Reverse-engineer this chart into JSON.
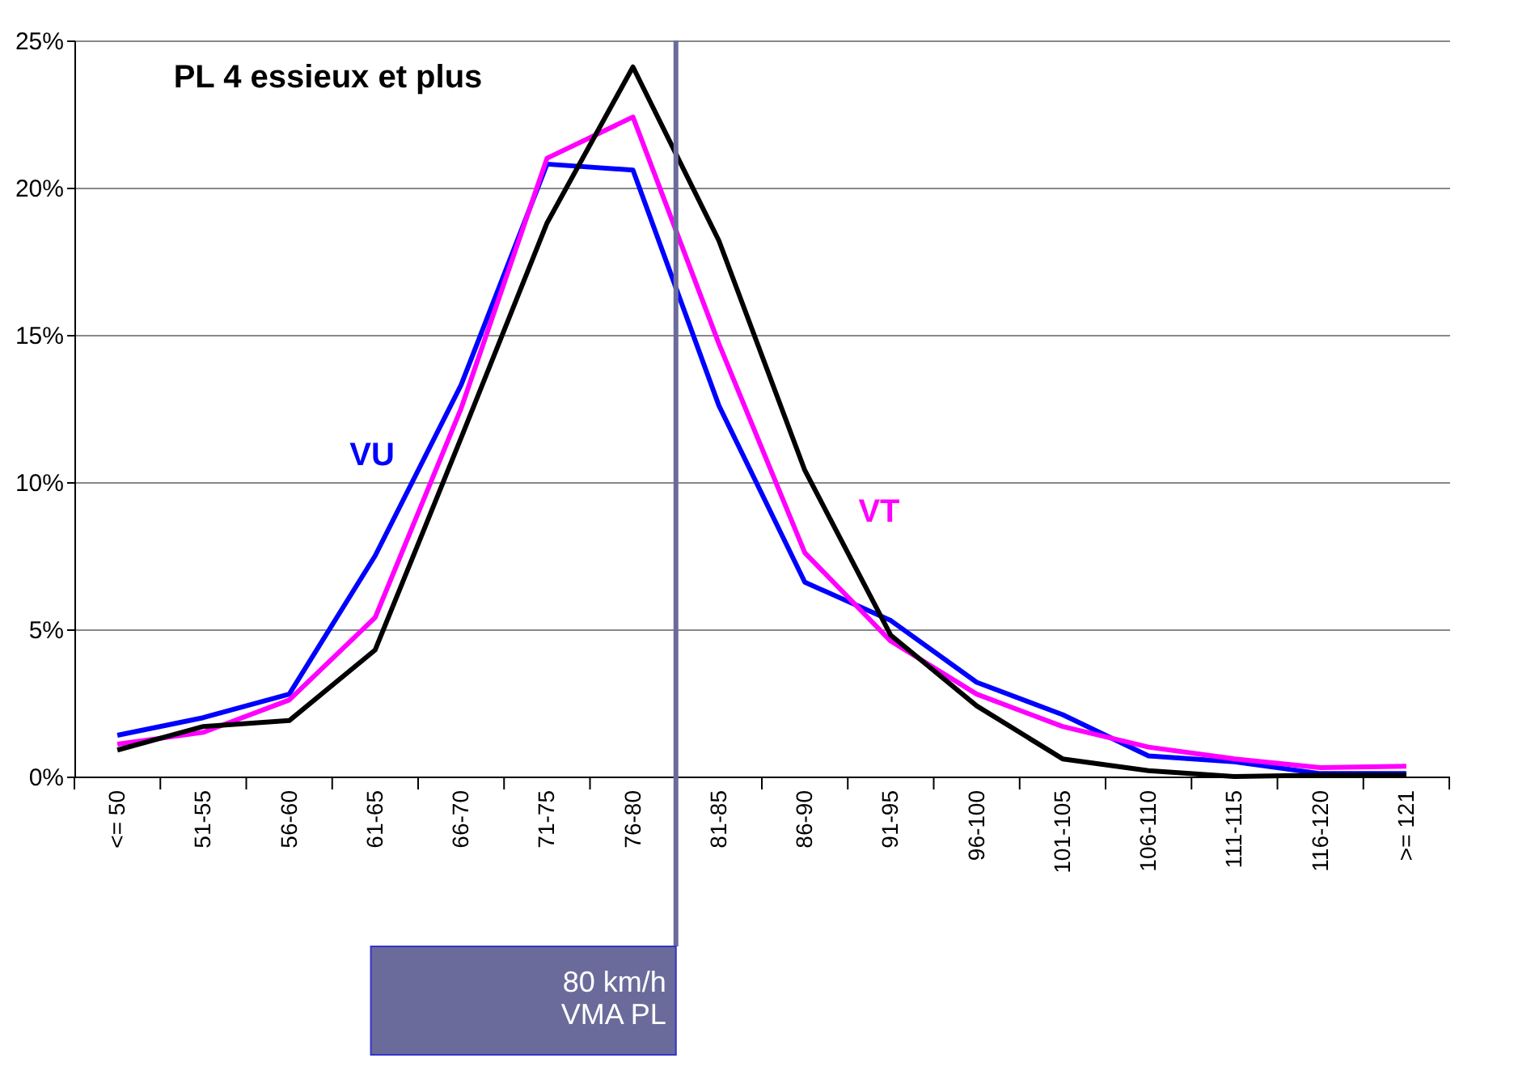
{
  "chart_data": {
    "type": "line",
    "categories": [
      "<= 50",
      "51-55",
      "56-60",
      "61-65",
      "66-70",
      "71-75",
      "76-80",
      "81-85",
      "86-90",
      "91-95",
      "96-100",
      "101-105",
      "106-110",
      "111-115",
      "116-120",
      ">= 121"
    ],
    "series": [
      {
        "name": "VU",
        "color": "#0000ff",
        "values": [
          1.4,
          2.0,
          2.8,
          7.5,
          13.3,
          20.8,
          20.6,
          12.6,
          6.6,
          5.3,
          3.2,
          2.1,
          0.7,
          0.5,
          0.1,
          0.1
        ]
      },
      {
        "name": "VT",
        "color": "#ff00ff",
        "values": [
          1.1,
          1.5,
          2.6,
          5.4,
          12.5,
          21.0,
          22.4,
          14.7,
          7.6,
          4.6,
          2.8,
          1.7,
          1.0,
          0.6,
          0.3,
          0.35
        ]
      },
      {
        "name": "PL 4 essieux et plus",
        "color": "#000000",
        "values": [
          0.9,
          1.7,
          1.9,
          4.3,
          11.5,
          18.8,
          24.1,
          18.2,
          10.4,
          4.8,
          2.4,
          0.6,
          0.2,
          0.0,
          0.05,
          0.05
        ]
      }
    ],
    "ylim": [
      0,
      25
    ],
    "yticks": [
      {
        "value": 0,
        "label": "0%"
      },
      {
        "value": 5,
        "label": "5%"
      },
      {
        "value": 10,
        "label": "10%"
      },
      {
        "value": 15,
        "label": "15%"
      },
      {
        "value": 20,
        "label": "20%"
      },
      {
        "value": 25,
        "label": "25%"
      }
    ],
    "grid": "y",
    "marker": "none",
    "line_style": "solid",
    "ref_lines": [
      {
        "axis": "x",
        "value": "76-80",
        "label": "80 km/h\nVMA PL",
        "color": "#6b6b9b"
      }
    ]
  }
}
